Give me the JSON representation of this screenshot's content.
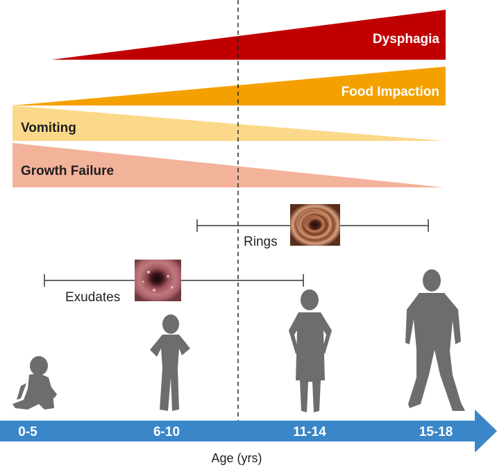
{
  "colors": {
    "dysphagia": "#c00000",
    "food_impaction": "#f4a100",
    "vomiting": "#fcd98a",
    "growth_failure": "#f3b29a",
    "age_arrow": "#3a86c8",
    "silhouette": "#6d6d6d"
  },
  "symptoms": {
    "dysphagia": "Dysphagia",
    "food_impaction": "Food Impaction",
    "vomiting": "Vomiting",
    "growth_failure": "Growth Failure"
  },
  "findings": {
    "rings": "Rings",
    "exudates": "Exudates"
  },
  "age_groups": [
    "0-5",
    "6-10",
    "11-14",
    "15-18"
  ],
  "axis_title": "Age (yrs)",
  "icons": [
    "endoscopy-rings-image",
    "endoscopy-exudates-image",
    "infant-silhouette",
    "child-silhouette",
    "preteen-silhouette",
    "teen-silhouette"
  ]
}
